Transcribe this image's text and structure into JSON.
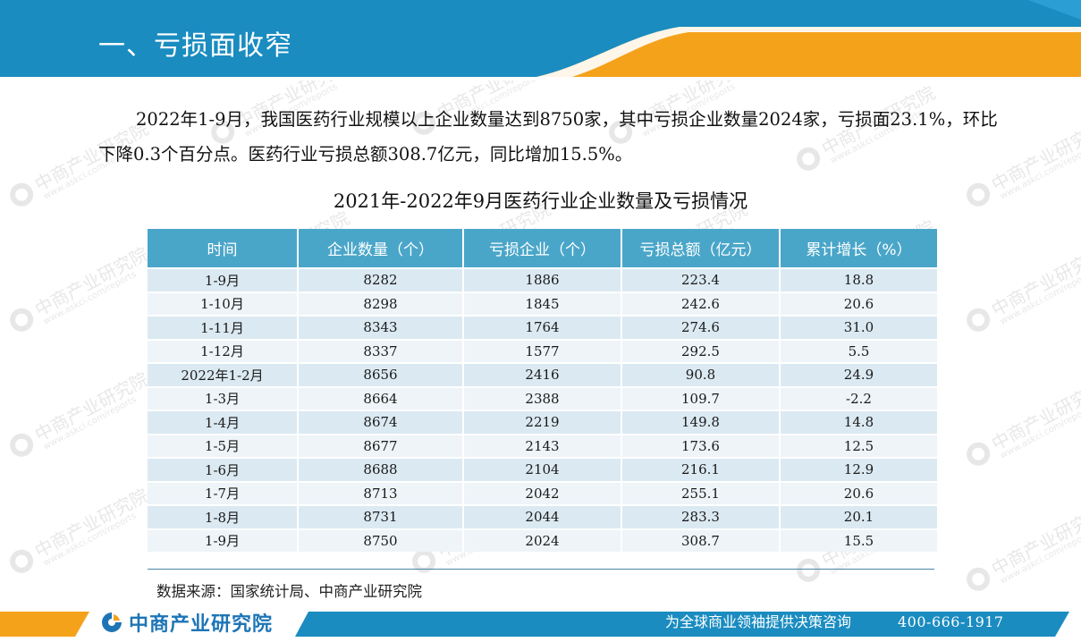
{
  "header": {
    "title": "一、亏损面收窄"
  },
  "paragraph": "2022年1-9月，我国医药行业规模以上企业数量达到8750家，其中亏损企业数量2024家，亏损面23.1%，环比下降0.3个百分点。医药行业亏损总额308.7亿元，同比增加15.5%。",
  "table": {
    "title": "2021年-2022年9月医药行业企业数量及亏损情况",
    "headers": [
      "时间",
      "企业数量（个）",
      "亏损企业（个）",
      "亏损总额（亿元）",
      "累计增长（%）"
    ],
    "rows": [
      [
        "1-9月",
        "8282",
        "1886",
        "223.4",
        "18.8"
      ],
      [
        "1-10月",
        "8298",
        "1845",
        "242.6",
        "20.6"
      ],
      [
        "1-11月",
        "8343",
        "1764",
        "274.6",
        "31.0"
      ],
      [
        "1-12月",
        "8337",
        "1577",
        "292.5",
        "5.5"
      ],
      [
        "2022年1-2月",
        "8656",
        "2416",
        "90.8",
        "24.9"
      ],
      [
        "1-3月",
        "8664",
        "2388",
        "109.7",
        "-2.2"
      ],
      [
        "1-4月",
        "8674",
        "2219",
        "149.8",
        "14.8"
      ],
      [
        "1-5月",
        "8677",
        "2143",
        "173.6",
        "12.5"
      ],
      [
        "1-6月",
        "8688",
        "2104",
        "216.1",
        "12.9"
      ],
      [
        "1-7月",
        "8713",
        "2042",
        "255.1",
        "20.6"
      ],
      [
        "1-8月",
        "8731",
        "2044",
        "283.3",
        "20.1"
      ],
      [
        "1-9月",
        "8750",
        "2024",
        "308.7",
        "15.5"
      ]
    ]
  },
  "source": "数据来源：国家统计局、中商产业研究院",
  "footer": {
    "logo_text": "中商产业研究院",
    "slogan": "为全球商业领袖提供决策咨询",
    "phone": "400-666-1917"
  },
  "watermark": {
    "text": "中商产业研究院",
    "sub": "www.askci.com/reports"
  },
  "colors": {
    "header_blue": "#1a8cc0",
    "accent_orange": "#f5a21b",
    "table_header": "#4aa6c9",
    "logo_blue": "#1d75b6"
  }
}
